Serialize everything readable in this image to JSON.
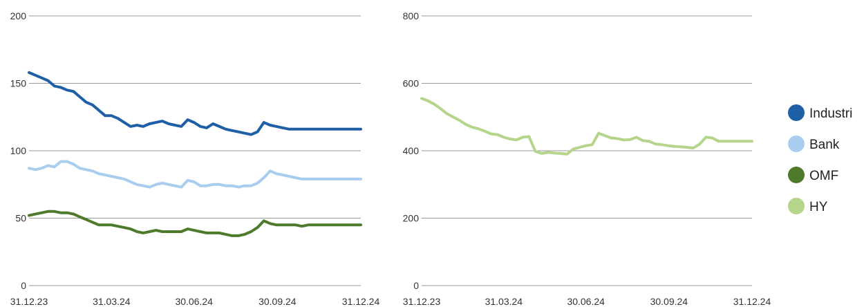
{
  "chart_data": [
    {
      "type": "line",
      "title": "",
      "xlabel": "",
      "ylabel": "",
      "ylim": [
        0,
        200
      ],
      "yticks": [
        0,
        50,
        100,
        150,
        200
      ],
      "xticks": [
        "31.12.23",
        "31.03.24",
        "30.06.24",
        "30.09.24",
        "31.12.24"
      ],
      "grid": true,
      "x": [
        "2023-12-31",
        "2024-01-07",
        "2024-01-14",
        "2024-01-21",
        "2024-01-28",
        "2024-02-04",
        "2024-02-11",
        "2024-02-18",
        "2024-02-25",
        "2024-03-03",
        "2024-03-10",
        "2024-03-17",
        "2024-03-24",
        "2024-03-31",
        "2024-04-07",
        "2024-04-14",
        "2024-04-21",
        "2024-04-28",
        "2024-05-05",
        "2024-05-12",
        "2024-05-19",
        "2024-05-26",
        "2024-06-02",
        "2024-06-09",
        "2024-06-16",
        "2024-06-23",
        "2024-06-30",
        "2024-07-07",
        "2024-07-14",
        "2024-07-21",
        "2024-07-28",
        "2024-08-04",
        "2024-08-11",
        "2024-08-18",
        "2024-08-25",
        "2024-09-01",
        "2024-09-08",
        "2024-09-15",
        "2024-09-22",
        "2024-09-29",
        "2024-10-06",
        "2024-10-13",
        "2024-10-20",
        "2024-10-27",
        "2024-11-03",
        "2024-11-10",
        "2024-11-17",
        "2024-11-24",
        "2024-12-01",
        "2024-12-08",
        "2024-12-15",
        "2024-12-22",
        "2024-12-31"
      ],
      "series": [
        {
          "name": "Industri",
          "color": "#1f5fa6",
          "values": [
            158,
            156,
            154,
            152,
            148,
            147,
            145,
            144,
            140,
            136,
            134,
            130,
            126,
            126,
            124,
            121,
            118,
            119,
            118,
            120,
            121,
            122,
            120,
            119,
            118,
            123,
            121,
            118,
            117,
            120,
            118,
            116,
            115,
            114,
            113,
            112,
            114,
            121,
            119,
            118,
            117,
            116,
            116,
            116,
            116,
            116,
            116,
            116,
            116,
            116,
            116,
            116,
            116
          ]
        },
        {
          "name": "Bank",
          "color": "#a9cdef",
          "values": [
            87,
            86,
            87,
            89,
            88,
            92,
            92,
            90,
            87,
            86,
            85,
            83,
            82,
            81,
            80,
            79,
            77,
            75,
            74,
            73,
            75,
            76,
            75,
            74,
            73,
            78,
            77,
            74,
            74,
            75,
            75,
            74,
            74,
            73,
            74,
            74,
            76,
            80,
            85,
            83,
            82,
            81,
            80,
            79,
            79,
            79,
            79,
            79,
            79,
            79,
            79,
            79,
            79
          ]
        },
        {
          "name": "OMF",
          "color": "#4e7a2c",
          "values": [
            52,
            53,
            54,
            55,
            55,
            54,
            54,
            53,
            51,
            49,
            47,
            45,
            45,
            45,
            44,
            43,
            42,
            40,
            39,
            40,
            41,
            40,
            40,
            40,
            40,
            42,
            41,
            40,
            39,
            39,
            39,
            38,
            37,
            37,
            38,
            40,
            43,
            48,
            46,
            45,
            45,
            45,
            45,
            44,
            45,
            45,
            45,
            45,
            45,
            45,
            45,
            45,
            45
          ]
        }
      ]
    },
    {
      "type": "line",
      "title": "",
      "xlabel": "",
      "ylabel": "",
      "ylim": [
        0,
        800
      ],
      "yticks": [
        0,
        200,
        400,
        600,
        800
      ],
      "xticks": [
        "31.12.23",
        "31.03.24",
        "30.06.24",
        "30.09.24",
        "31.12.24"
      ],
      "grid": true,
      "x": [
        "2023-12-31",
        "2024-01-07",
        "2024-01-14",
        "2024-01-21",
        "2024-01-28",
        "2024-02-04",
        "2024-02-11",
        "2024-02-18",
        "2024-02-25",
        "2024-03-03",
        "2024-03-10",
        "2024-03-17",
        "2024-03-24",
        "2024-03-31",
        "2024-04-07",
        "2024-04-14",
        "2024-04-21",
        "2024-04-28",
        "2024-05-05",
        "2024-05-12",
        "2024-05-19",
        "2024-05-26",
        "2024-06-02",
        "2024-06-09",
        "2024-06-16",
        "2024-06-23",
        "2024-06-30",
        "2024-07-07",
        "2024-07-14",
        "2024-07-21",
        "2024-07-28",
        "2024-08-04",
        "2024-08-11",
        "2024-08-18",
        "2024-08-25",
        "2024-09-01",
        "2024-09-08",
        "2024-09-15",
        "2024-09-22",
        "2024-09-29",
        "2024-10-06",
        "2024-10-13",
        "2024-10-20",
        "2024-10-27",
        "2024-11-03",
        "2024-11-10",
        "2024-11-17",
        "2024-11-24",
        "2024-12-01",
        "2024-12-08",
        "2024-12-15",
        "2024-12-22",
        "2024-12-31"
      ],
      "series": [
        {
          "name": "HY",
          "color": "#b4d58a",
          "values": [
            555,
            548,
            538,
            525,
            510,
            500,
            490,
            478,
            470,
            465,
            458,
            450,
            448,
            440,
            435,
            432,
            440,
            442,
            398,
            392,
            395,
            393,
            392,
            390,
            405,
            410,
            415,
            418,
            452,
            445,
            438,
            436,
            432,
            433,
            440,
            430,
            428,
            420,
            418,
            415,
            413,
            412,
            410,
            408,
            420,
            440,
            438,
            428,
            428,
            428,
            428,
            428,
            428
          ]
        }
      ]
    }
  ],
  "legend": {
    "placement": "right",
    "items": [
      {
        "label": "Industri",
        "color": "#1f5fa6"
      },
      {
        "label": "Bank",
        "color": "#a9cdef"
      },
      {
        "label": "OMF",
        "color": "#4e7a2c"
      },
      {
        "label": "HY",
        "color": "#b4d58a"
      }
    ]
  }
}
